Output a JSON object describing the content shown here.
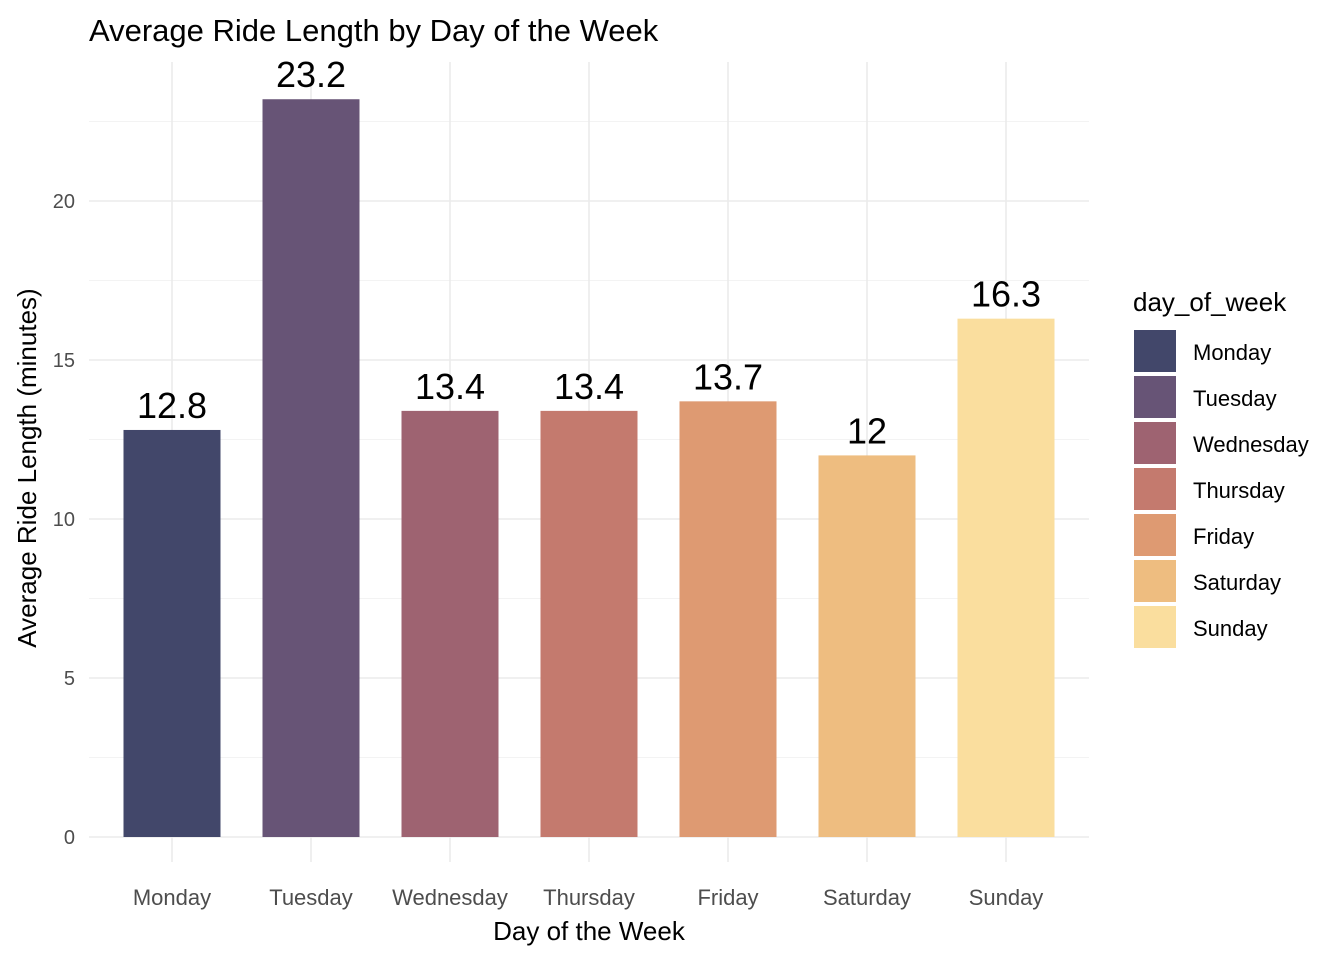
{
  "chart_data": {
    "type": "bar",
    "title": "Average Ride Length by Day of the Week",
    "xlabel": "Day of the Week",
    "ylabel": "Average Ride Length (minutes)",
    "categories": [
      "Monday",
      "Tuesday",
      "Wednesday",
      "Thursday",
      "Friday",
      "Saturday",
      "Sunday"
    ],
    "values": [
      12.8,
      23.2,
      13.4,
      13.4,
      13.7,
      12,
      16.3
    ],
    "data_labels": [
      "12.8",
      "23.2",
      "13.4",
      "13.4",
      "13.7",
      "12",
      "16.3"
    ],
    "colors": [
      "#42476A",
      "#675476",
      "#9E6371",
      "#C47A6E",
      "#DE9A72",
      "#EEBD80",
      "#FADE9E"
    ],
    "yticks": [
      "0",
      "5",
      "10",
      "15",
      "20"
    ],
    "ylim": [
      0,
      23.2
    ],
    "grid": true,
    "legend": {
      "title": "day_of_week",
      "placement": "right",
      "items": [
        "Monday",
        "Tuesday",
        "Wednesday",
        "Thursday",
        "Friday",
        "Saturday",
        "Sunday"
      ]
    }
  }
}
